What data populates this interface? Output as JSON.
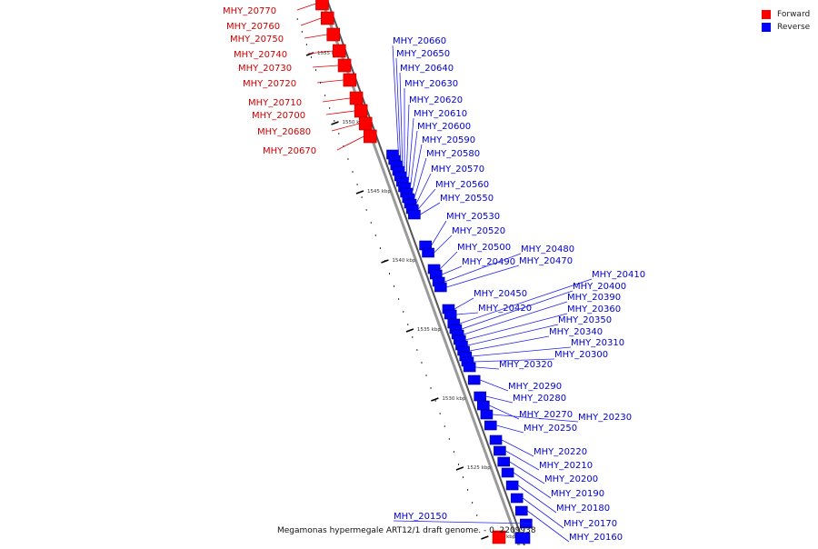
{
  "legend": {
    "forward": {
      "label": "Forward",
      "color": "#ff0000"
    },
    "reverse": {
      "label": "Reverse",
      "color": "#0000ff"
    }
  },
  "caption": "Megamonas hypermegale ART12/1 draft genome. - 0..2209938",
  "ticks": [
    "1555 kbp",
    "1550 kbp",
    "1545 kbp",
    "1540 kbp",
    "1535 kbp",
    "1530 kbp",
    "1525 kbp",
    "1520 kbp"
  ],
  "forward_genes": [
    "MHY_20770",
    "MHY_20760",
    "MHY_20750",
    "MHY_20740",
    "MHY_20730",
    "MHY_20720",
    "MHY_20710",
    "MHY_20700",
    "MHY_20680",
    "MHY_20670"
  ],
  "reverse_genes": [
    "MHY_20660",
    "MHY_20650",
    "MHY_20640",
    "MHY_20630",
    "MHY_20620",
    "MHY_20610",
    "MHY_20600",
    "MHY_20590",
    "MHY_20580",
    "MHY_20570",
    "MHY_20560",
    "MHY_20550",
    "MHY_20530",
    "MHY_20520",
    "MHY_20500",
    "MHY_20490",
    "MHY_20480",
    "MHY_20470",
    "MHY_20450",
    "MHY_20420",
    "MHY_20410",
    "MHY_20400",
    "MHY_20390",
    "MHY_20360",
    "MHY_20350",
    "MHY_20340",
    "MHY_20310",
    "MHY_20300",
    "MHY_20320",
    "MHY_20290",
    "MHY_20280",
    "MHY_20270",
    "MHY_20230",
    "MHY_20250",
    "MHY_20220",
    "MHY_20210",
    "MHY_20200",
    "MHY_20190",
    "MHY_20180",
    "MHY_20170",
    "MHY_20160",
    "MHY_20150"
  ]
}
